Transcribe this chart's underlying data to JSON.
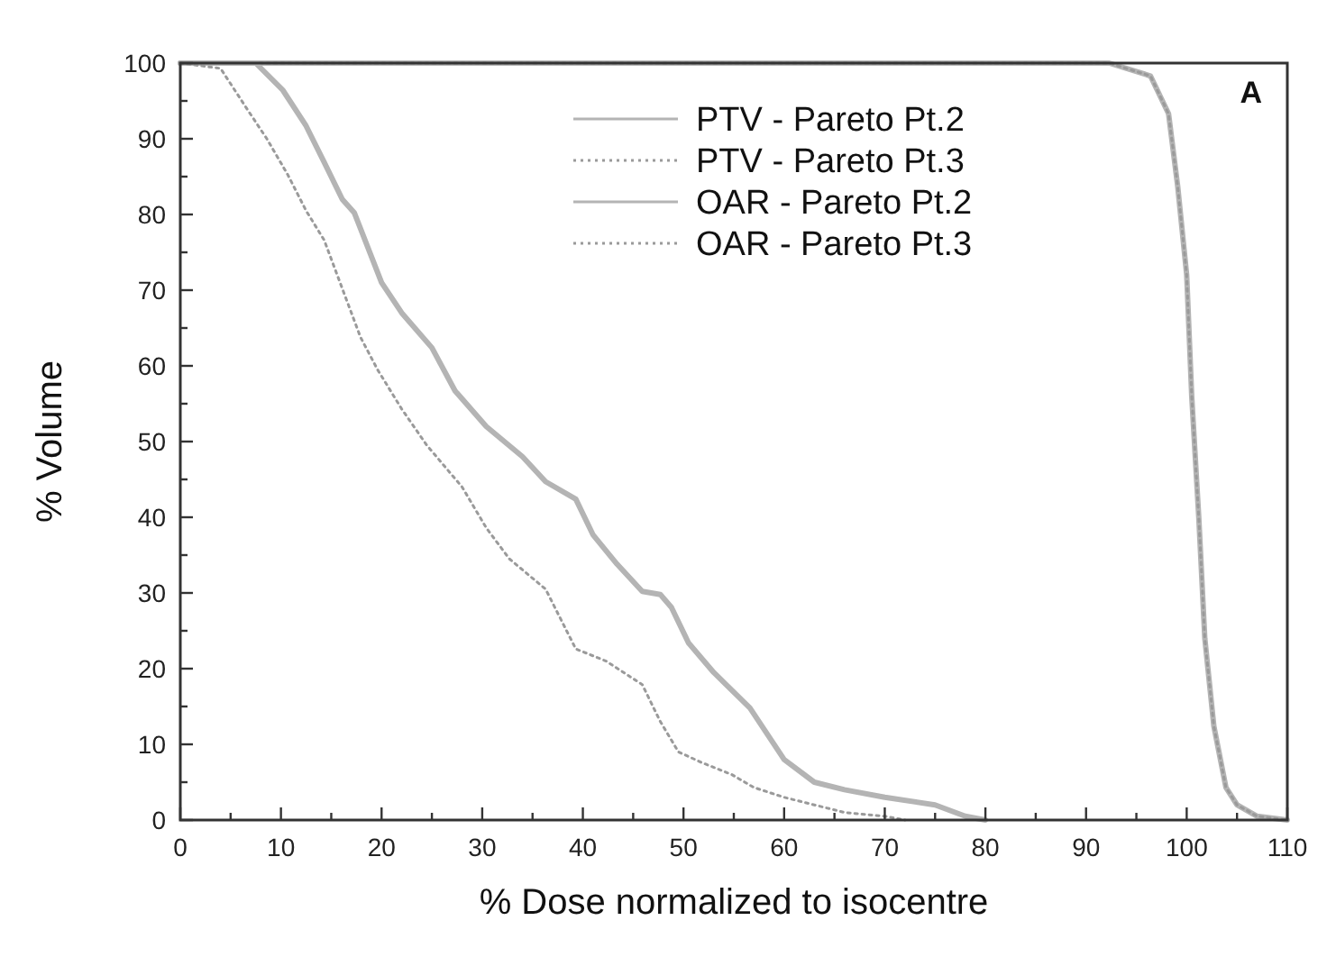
{
  "chart_data": {
    "type": "line",
    "xlabel": "% Dose normalized to isocentre",
    "ylabel": "% Volume",
    "annotations": [
      "A"
    ],
    "xlim": [
      0,
      110
    ],
    "ylim": [
      0,
      100
    ],
    "xticks": [
      0,
      {
        "value": 5,
        "label": null
      },
      10,
      {
        "value": 15,
        "label": null
      },
      20,
      {
        "value": 25,
        "label": null
      },
      30,
      {
        "value": 35,
        "label": null
      },
      40,
      {
        "value": 45,
        "label": null
      },
      50,
      {
        "value": 55,
        "label": null
      },
      60,
      {
        "value": 65,
        "label": null
      },
      70,
      {
        "value": 75,
        "label": null
      },
      80,
      {
        "value": 85,
        "label": null
      },
      90,
      {
        "value": 95,
        "label": null
      },
      100,
      {
        "value": 105,
        "label": null
      },
      110
    ],
    "yticks": [
      0,
      {
        "value": 5,
        "label": null
      },
      10,
      {
        "value": 15,
        "label": null
      },
      20,
      {
        "value": 25,
        "label": null
      },
      30,
      {
        "value": 35,
        "label": null
      },
      40,
      {
        "value": 45,
        "label": null
      },
      50,
      {
        "value": 55,
        "label": null
      },
      60,
      {
        "value": 65,
        "label": null
      },
      70,
      {
        "value": 75,
        "label": null
      },
      80,
      {
        "value": 85,
        "label": null
      },
      90,
      {
        "value": 95,
        "label": null
      },
      100
    ],
    "grid": false,
    "legend": "top right",
    "marker": "none",
    "series": [
      {
        "name": "PTV - Pareto Pt.2",
        "color": "#b4b4b4",
        "line_style": "solid",
        "x": [
          0,
          92.3,
          96.4,
          98.2,
          99.1,
          100,
          100.5,
          101.2,
          101.8,
          102.7,
          103.9,
          105,
          107,
          110
        ],
        "values": [
          100,
          100,
          98.3,
          93.3,
          83.8,
          72,
          56,
          40,
          24,
          12.4,
          4.3,
          2,
          0.5,
          0
        ]
      },
      {
        "name": "PTV - Pareto Pt.3",
        "color": "#9a9a9a",
        "line_style": "dotted",
        "x": [
          0,
          92.3,
          96.4,
          98.2,
          99.1,
          100,
          100.5,
          101.2,
          101.8,
          102.7,
          103.9,
          105,
          107,
          110
        ],
        "values": [
          100,
          100,
          98.3,
          93.3,
          83.8,
          72,
          56,
          40,
          24,
          12.4,
          4.3,
          2,
          0.5,
          0
        ]
      },
      {
        "name": "OAR - Pareto Pt.2",
        "color": "#b4b4b4",
        "line_style": "solid",
        "x": [
          0,
          7.5,
          10.2,
          12.5,
          14.3,
          16.1,
          17.3,
          20,
          22,
          25,
          27.3,
          30.4,
          34,
          36.3,
          39.3,
          41,
          43.4,
          45.9,
          47.7,
          48.8,
          50.5,
          53,
          56.6,
          60,
          63,
          66,
          70,
          75,
          78,
          80
        ],
        "values": [
          100,
          100,
          96.4,
          91.7,
          86.9,
          82,
          80.2,
          71,
          67,
          62.4,
          56.7,
          52,
          48,
          44.7,
          42.4,
          37.7,
          33.8,
          30.2,
          29.8,
          28.1,
          23.4,
          19.5,
          14.8,
          8,
          5,
          4,
          3,
          2,
          0.5,
          0
        ]
      },
      {
        "name": "OAR - Pareto Pt.3",
        "color": "#9a9a9a",
        "line_style": "dotted",
        "x": [
          0,
          4,
          6.6,
          8.6,
          10.7,
          12.5,
          14.3,
          16.1,
          17.9,
          19.6,
          22,
          24.5,
          28,
          30.4,
          32.7,
          36.3,
          39.3,
          42.3,
          45.9,
          47.7,
          49.5,
          51.8,
          54.8,
          57,
          60,
          63,
          66,
          70,
          72
        ],
        "values": [
          100,
          99.3,
          94,
          90,
          85.2,
          80.5,
          76.6,
          70.2,
          63.8,
          59.5,
          54.3,
          49.5,
          44,
          38.6,
          34.5,
          30.5,
          22.6,
          21,
          17.9,
          13,
          9,
          7.6,
          6,
          4.3,
          3,
          2,
          1,
          0.5,
          0
        ]
      }
    ]
  }
}
